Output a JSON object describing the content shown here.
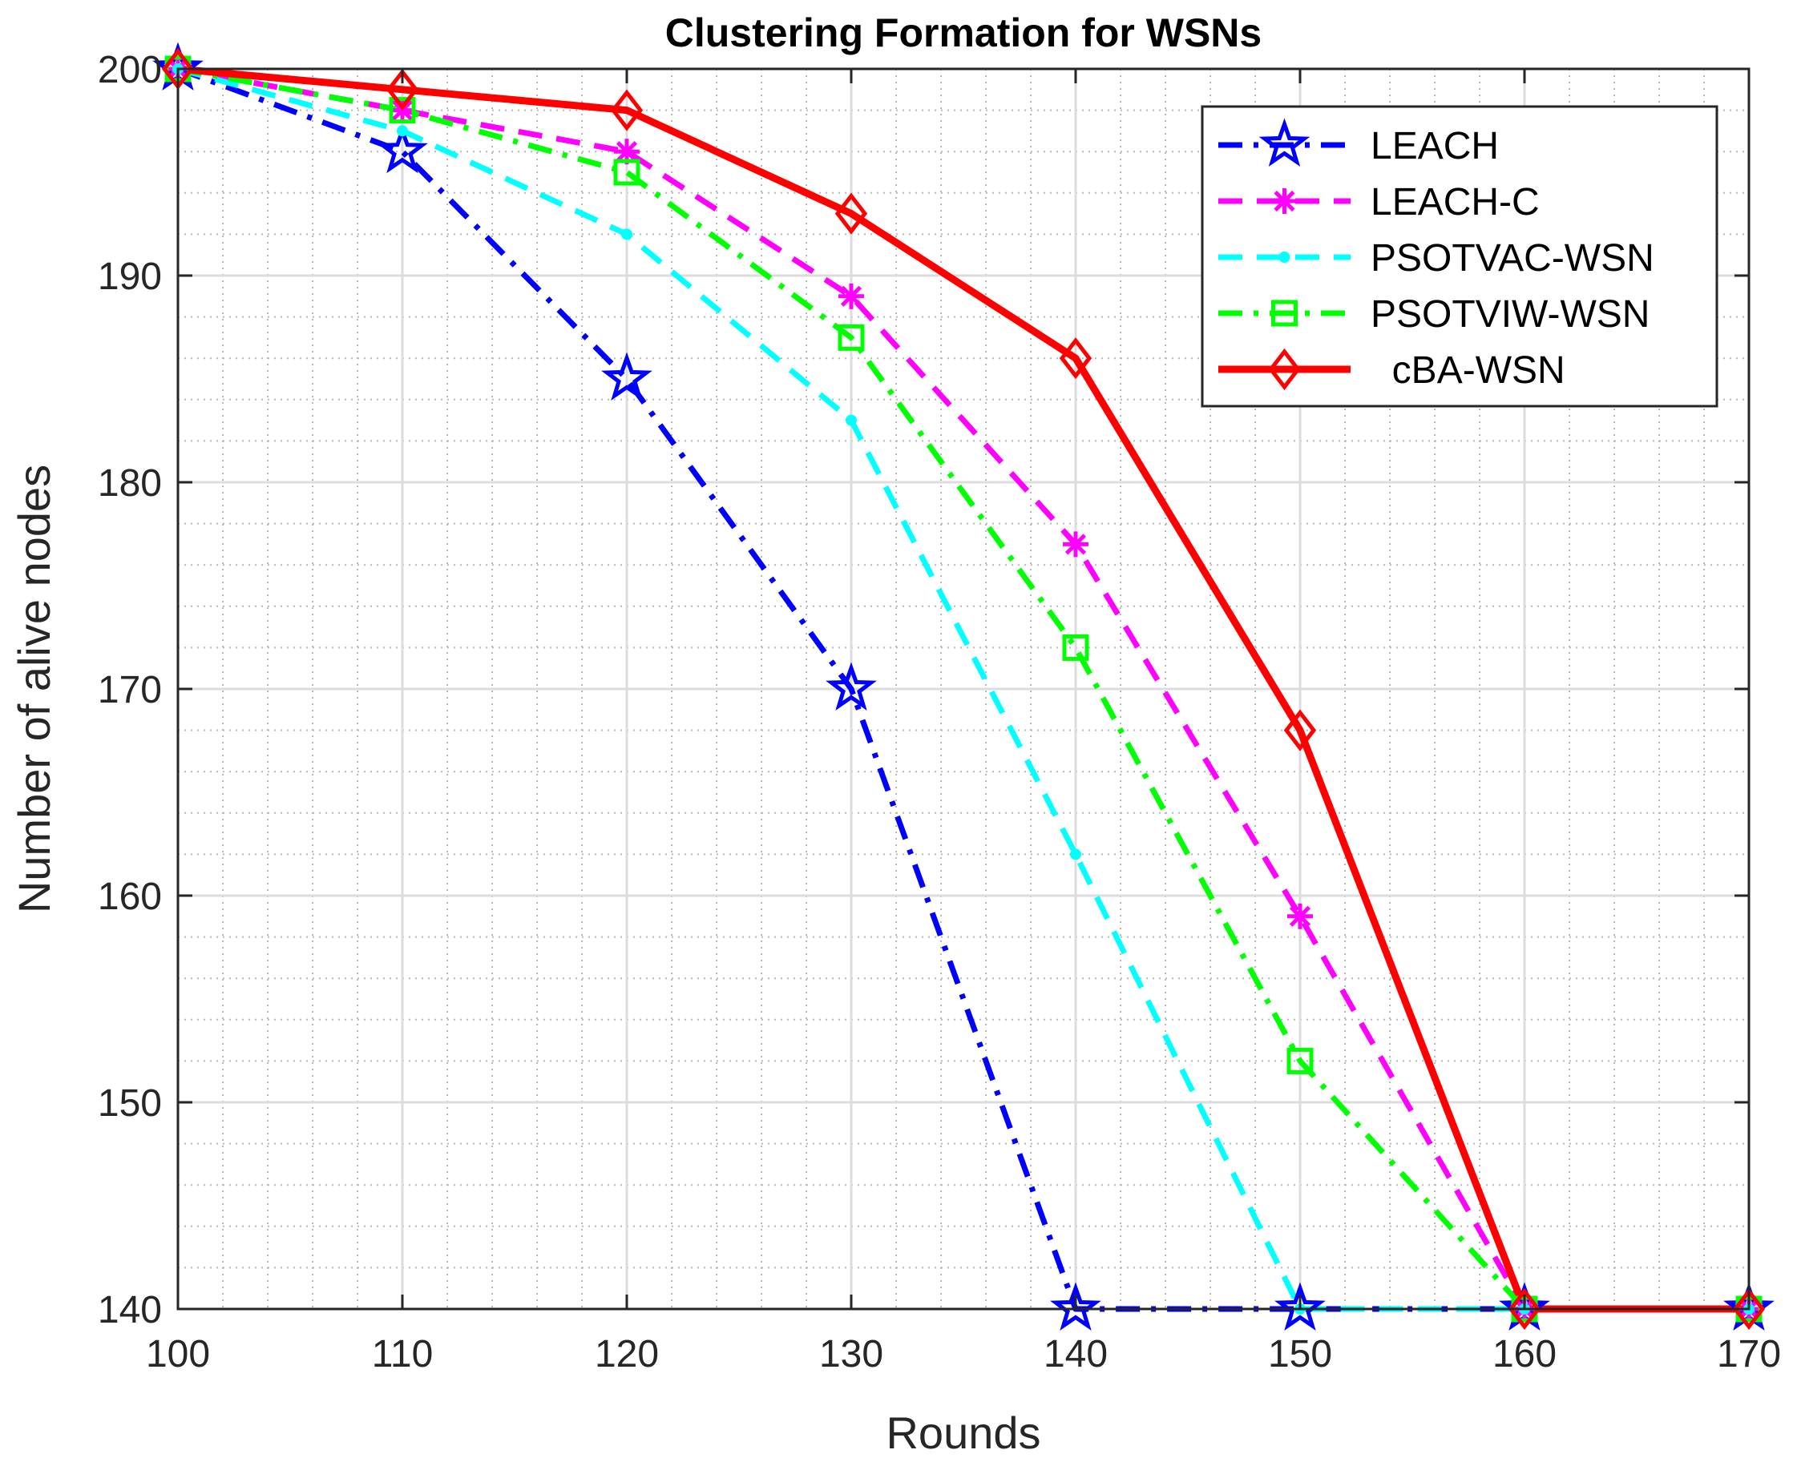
{
  "chart_data": {
    "type": "line",
    "title": "Clustering Formation for WSNs",
    "xlabel": "Rounds",
    "ylabel": "Number of alive nodes",
    "xlim": [
      100,
      170
    ],
    "ylim": [
      140,
      200
    ],
    "x": [
      100,
      110,
      120,
      130,
      140,
      150,
      160,
      170
    ],
    "xticks": [
      100,
      110,
      120,
      130,
      140,
      150,
      160,
      170
    ],
    "yticks": [
      140,
      150,
      160,
      170,
      180,
      190,
      200
    ],
    "grid": true,
    "minor_grid": true,
    "legend_position": "top-right",
    "series": [
      {
        "name": "LEACH",
        "color": "#0000ff",
        "dash": "dashdot",
        "marker": "star",
        "values": [
          200,
          196,
          185,
          170,
          140,
          140,
          140,
          140
        ]
      },
      {
        "name": "LEACH-C",
        "color": "#ff00ff",
        "dash": "dashed",
        "marker": "asterisk",
        "values": [
          200,
          198,
          196,
          189,
          177,
          159,
          140,
          140
        ]
      },
      {
        "name": "PSOTVAC-WSN",
        "color": "#00ffff",
        "dash": "dashed",
        "marker": "dot",
        "values": [
          200,
          197,
          192,
          183,
          162,
          140,
          140,
          140
        ]
      },
      {
        "name": "PSOTVIW-WSN",
        "color": "#00ff00",
        "dash": "dashdot",
        "marker": "square",
        "values": [
          200,
          198,
          195,
          187,
          172,
          152,
          140,
          140
        ]
      },
      {
        "name": "  cBA-WSN",
        "color": "#ff0000",
        "dash": "solid",
        "marker": "diamond",
        "values": [
          200,
          199,
          198,
          193,
          186,
          168,
          140,
          140
        ]
      }
    ]
  }
}
